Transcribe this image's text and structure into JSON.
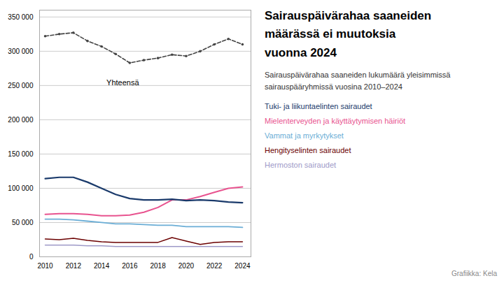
{
  "chart_data": {
    "type": "line",
    "title": "Sairauspäivärahaa saaneiden\nmäärässä ei muutoksia\nvuonna 2024",
    "subtitle": "Sairauspäivärahaa saaneiden lukumäärä yleisimmissä\nsairauspääryhmissä vuosina 2010–2024",
    "caption": "Grafiikka: Kela",
    "x": [
      2010,
      2011,
      2012,
      2013,
      2014,
      2015,
      2016,
      2017,
      2018,
      2019,
      2020,
      2021,
      2022,
      2023,
      2024
    ],
    "series": [
      {
        "name": "Yhteensä",
        "color": "#444444",
        "line_style": "dashed",
        "marker": "circle",
        "values": [
          322000,
          325000,
          327000,
          315000,
          307000,
          296000,
          283000,
          287000,
          290000,
          295000,
          293000,
          300000,
          310000,
          318000,
          310000
        ]
      },
      {
        "name": "Tuki- ja liikuntaelinten sairaudet",
        "color": "#1a3a6b",
        "line_style": "solid",
        "values": [
          114000,
          116000,
          116000,
          109000,
          100000,
          91000,
          85000,
          83000,
          83000,
          84000,
          82000,
          83000,
          82000,
          80000,
          79000
        ]
      },
      {
        "name": "Mielenterveyden ja käyttäytymisen häiriöt",
        "color": "#e8538f",
        "line_style": "solid",
        "values": [
          62000,
          63000,
          63000,
          62000,
          60000,
          60000,
          61000,
          65000,
          72000,
          83000,
          83000,
          88000,
          94000,
          100000,
          102000
        ]
      },
      {
        "name": "Vammat ja myrkytykset",
        "color": "#6baed6",
        "line_style": "solid",
        "values": [
          55000,
          55000,
          54000,
          52000,
          50000,
          48000,
          48000,
          47000,
          46000,
          46000,
          44000,
          44000,
          44000,
          44000,
          43000
        ]
      },
      {
        "name": "Hengityselinten sairaudet",
        "color": "#6b0000",
        "line_style": "solid",
        "values": [
          26000,
          25000,
          27000,
          24000,
          22000,
          21000,
          21000,
          21000,
          21000,
          28000,
          23000,
          18000,
          21000,
          22000,
          22000
        ]
      },
      {
        "name": "Hermoston sairaudet",
        "color": "#9e9ac8",
        "line_style": "solid",
        "values": [
          17000,
          17000,
          17000,
          16000,
          16000,
          15000,
          15000,
          15000,
          15000,
          15000,
          15000,
          15000,
          15000,
          15000,
          15000
        ]
      }
    ],
    "annotations": [
      {
        "text": "Yhteensä",
        "x": 2015.5,
        "y": 258000
      }
    ],
    "xlim": [
      2009.6,
      2024.6
    ],
    "xticks": [
      2010,
      2012,
      2014,
      2016,
      2018,
      2020,
      2022,
      2024
    ],
    "ylim": [
      0,
      360000
    ],
    "yticks": [
      0,
      {
        "value": 50000,
        "label": "50 000"
      },
      {
        "value": 100000,
        "label": "100 000"
      },
      {
        "value": 150000,
        "label": "150 000"
      },
      {
        "value": 200000,
        "label": "200 000"
      },
      {
        "value": 250000,
        "label": "250 000"
      },
      {
        "value": 300000,
        "label": "300 000"
      },
      {
        "value": 350000,
        "label": "350 000"
      }
    ],
    "grid": true,
    "tick_labels": true
  }
}
